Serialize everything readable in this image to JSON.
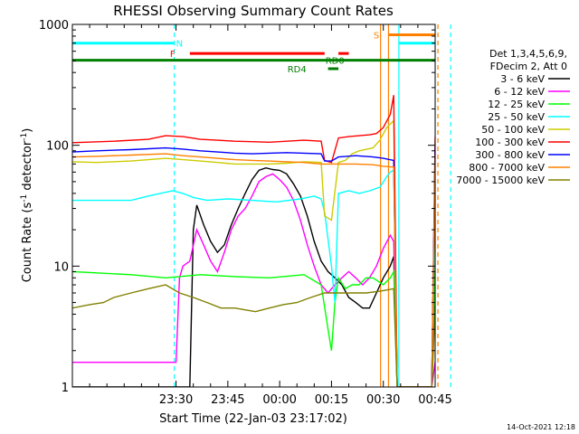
{
  "chart_data": {
    "type": "line",
    "title": "RHESSI Observing Summary Count Rates",
    "xlabel": "Start Time (22-Jan-03 23:17:02)",
    "ylabel_parts": [
      "Count Rate (s",
      "-1",
      " detector",
      "-1",
      ")"
    ],
    "yscale": "log",
    "ylim": [
      1,
      1000
    ],
    "xlim_min": [
      -17,
      88
    ],
    "x_ticks": [
      {
        "min": 13,
        "label": "23:30"
      },
      {
        "min": 28,
        "label": "23:45"
      },
      {
        "min": 43,
        "label": "00:00"
      },
      {
        "min": 58,
        "label": "00:15"
      },
      {
        "min": 73,
        "label": "00:30"
      },
      {
        "min": 88,
        "label": "00:45"
      }
    ],
    "y_ticks": [
      {
        "value": 1,
        "label": "1"
      },
      {
        "value": 10,
        "label": "10"
      },
      {
        "value": 100,
        "label": "100"
      },
      {
        "value": 1000,
        "label": "1000"
      }
    ],
    "legend_header": [
      "Det 1,3,4,5,6,9,",
      "FDecim 2, Att 0"
    ],
    "series": [
      {
        "name": "3 - 6 keV",
        "color": "#000000",
        "points": [
          [
            -17,
            1
          ],
          [
            17,
            1
          ],
          [
            18,
            20
          ],
          [
            19,
            32
          ],
          [
            21,
            22
          ],
          [
            23,
            16
          ],
          [
            25,
            13
          ],
          [
            27,
            15
          ],
          [
            29,
            22
          ],
          [
            31,
            30
          ],
          [
            33,
            40
          ],
          [
            35,
            52
          ],
          [
            37,
            62
          ],
          [
            39,
            65
          ],
          [
            41,
            63
          ],
          [
            43,
            62
          ],
          [
            45,
            58
          ],
          [
            47,
            48
          ],
          [
            49,
            38
          ],
          [
            51,
            26
          ],
          [
            53,
            16
          ],
          [
            55,
            11
          ],
          [
            57,
            9
          ],
          [
            59,
            8
          ],
          [
            61,
            7
          ],
          [
            63,
            5.5
          ],
          [
            65,
            5
          ],
          [
            67,
            4.5
          ],
          [
            69,
            4.5
          ],
          [
            71,
            6
          ],
          [
            73,
            8
          ],
          [
            75,
            10
          ],
          [
            76,
            12
          ],
          [
            77,
            1
          ],
          [
            87,
            1
          ],
          [
            88,
            9
          ],
          [
            90,
            8
          ],
          [
            92,
            7
          ]
        ]
      },
      {
        "name": "6 - 12 keV",
        "color": "#ff00ff",
        "points": [
          [
            -17,
            1.6
          ],
          [
            -5,
            1.6
          ],
          [
            12,
            1.6
          ],
          [
            13,
            1.6
          ],
          [
            14,
            8
          ],
          [
            15,
            10
          ],
          [
            17,
            11
          ],
          [
            19,
            20
          ],
          [
            21,
            15
          ],
          [
            23,
            11
          ],
          [
            25,
            9
          ],
          [
            27,
            13
          ],
          [
            29,
            20
          ],
          [
            31,
            26
          ],
          [
            33,
            30
          ],
          [
            35,
            38
          ],
          [
            37,
            50
          ],
          [
            39,
            55
          ],
          [
            41,
            58
          ],
          [
            43,
            52
          ],
          [
            45,
            45
          ],
          [
            47,
            35
          ],
          [
            49,
            24
          ],
          [
            51,
            15
          ],
          [
            53,
            10
          ],
          [
            55,
            7
          ],
          [
            57,
            6
          ],
          [
            59,
            7
          ],
          [
            61,
            8
          ],
          [
            63,
            9
          ],
          [
            65,
            8
          ],
          [
            67,
            7
          ],
          [
            69,
            8
          ],
          [
            71,
            10
          ],
          [
            73,
            14
          ],
          [
            75,
            18
          ],
          [
            76,
            16
          ],
          [
            77,
            1
          ],
          [
            87,
            1
          ],
          [
            88,
            1.6
          ],
          [
            90,
            1.6
          ],
          [
            92,
            1.6
          ]
        ]
      },
      {
        "name": "12 - 25 keV",
        "color": "#00ff00",
        "points": [
          [
            -17,
            9
          ],
          [
            0,
            8.5
          ],
          [
            10,
            8
          ],
          [
            20,
            8.5
          ],
          [
            30,
            8.2
          ],
          [
            40,
            8
          ],
          [
            50,
            8.5
          ],
          [
            55,
            7
          ],
          [
            57,
            3
          ],
          [
            58,
            2
          ],
          [
            59,
            5
          ],
          [
            60,
            8
          ],
          [
            62,
            6.5
          ],
          [
            64,
            7
          ],
          [
            66,
            7
          ],
          [
            68,
            8
          ],
          [
            70,
            8
          ],
          [
            73,
            7
          ],
          [
            75,
            8
          ],
          [
            76,
            9
          ],
          [
            77,
            1
          ],
          [
            87,
            1
          ],
          [
            88,
            10
          ],
          [
            90,
            9
          ],
          [
            92,
            8
          ]
        ]
      },
      {
        "name": "25 - 50 keV",
        "color": "#00ffff",
        "points": [
          [
            -17,
            35
          ],
          [
            -10,
            35
          ],
          [
            0,
            35
          ],
          [
            5,
            38
          ],
          [
            12,
            42
          ],
          [
            15,
            40
          ],
          [
            18,
            37
          ],
          [
            22,
            35
          ],
          [
            28,
            36
          ],
          [
            35,
            35
          ],
          [
            42,
            34
          ],
          [
            49,
            36
          ],
          [
            53,
            38
          ],
          [
            55,
            36
          ],
          [
            56,
            28
          ],
          [
            58,
            10
          ],
          [
            59,
            5
          ],
          [
            60,
            40
          ],
          [
            63,
            42
          ],
          [
            66,
            40
          ],
          [
            69,
            42
          ],
          [
            72,
            45
          ],
          [
            74,
            55
          ],
          [
            75,
            60
          ],
          [
            76,
            62
          ],
          [
            77,
            1
          ],
          [
            87,
            1
          ],
          [
            88,
            38
          ],
          [
            90,
            35
          ],
          [
            92,
            34
          ]
        ]
      },
      {
        "name": "50 - 100 keV",
        "color": "#cccc00",
        "points": [
          [
            -17,
            73
          ],
          [
            -10,
            72
          ],
          [
            0,
            74
          ],
          [
            10,
            78
          ],
          [
            15,
            76
          ],
          [
            20,
            74
          ],
          [
            25,
            72
          ],
          [
            30,
            70
          ],
          [
            35,
            70
          ],
          [
            40,
            70
          ],
          [
            45,
            71
          ],
          [
            50,
            73
          ],
          [
            55,
            72
          ],
          [
            56,
            26
          ],
          [
            58,
            24
          ],
          [
            60,
            72
          ],
          [
            62,
            75
          ],
          [
            64,
            85
          ],
          [
            66,
            90
          ],
          [
            70,
            95
          ],
          [
            72,
            110
          ],
          [
            74,
            140
          ],
          [
            76,
            160
          ],
          [
            77,
            1
          ],
          [
            87,
            1
          ],
          [
            88,
            78
          ],
          [
            90,
            72
          ],
          [
            92,
            70
          ]
        ]
      },
      {
        "name": "100 - 300 keV",
        "color": "#ff0000",
        "points": [
          [
            -17,
            105
          ],
          [
            -5,
            108
          ],
          [
            5,
            112
          ],
          [
            10,
            120
          ],
          [
            15,
            118
          ],
          [
            20,
            112
          ],
          [
            25,
            110
          ],
          [
            30,
            108
          ],
          [
            35,
            107
          ],
          [
            40,
            106
          ],
          [
            45,
            108
          ],
          [
            50,
            110
          ],
          [
            55,
            108
          ],
          [
            56,
            75
          ],
          [
            58,
            72
          ],
          [
            60,
            115
          ],
          [
            63,
            118
          ],
          [
            66,
            120
          ],
          [
            69,
            122
          ],
          [
            71,
            125
          ],
          [
            73,
            140
          ],
          [
            75,
            180
          ],
          [
            76,
            260
          ],
          [
            77,
            1
          ],
          [
            87,
            1
          ],
          [
            88,
            115
          ],
          [
            90,
            105
          ],
          [
            92,
            100
          ]
        ]
      },
      {
        "name": "300 - 800 keV",
        "color": "#0000ff",
        "points": [
          [
            -17,
            88
          ],
          [
            -10,
            90
          ],
          [
            0,
            92
          ],
          [
            10,
            95
          ],
          [
            15,
            93
          ],
          [
            20,
            90
          ],
          [
            25,
            88
          ],
          [
            30,
            86
          ],
          [
            35,
            85
          ],
          [
            40,
            86
          ],
          [
            45,
            87
          ],
          [
            50,
            86
          ],
          [
            55,
            85
          ],
          [
            56,
            74
          ],
          [
            58,
            74
          ],
          [
            60,
            80
          ],
          [
            65,
            82
          ],
          [
            70,
            80
          ],
          [
            73,
            78
          ],
          [
            76,
            75
          ],
          [
            77,
            1
          ],
          [
            87,
            1
          ],
          [
            88,
            95
          ],
          [
            90,
            90
          ],
          [
            92,
            88
          ]
        ]
      },
      {
        "name": "800 - 7000 keV",
        "color": "#ff8000",
        "points": [
          [
            -17,
            80
          ],
          [
            -10,
            81
          ],
          [
            0,
            83
          ],
          [
            10,
            85
          ],
          [
            15,
            82
          ],
          [
            20,
            80
          ],
          [
            25,
            78
          ],
          [
            30,
            76
          ],
          [
            35,
            75
          ],
          [
            40,
            74
          ],
          [
            45,
            73
          ],
          [
            50,
            72
          ],
          [
            55,
            70
          ],
          [
            60,
            70
          ],
          [
            65,
            70
          ],
          [
            70,
            69
          ],
          [
            73,
            67
          ],
          [
            76,
            66
          ],
          [
            77,
            1
          ],
          [
            87,
            1
          ],
          [
            88,
            82
          ],
          [
            90,
            80
          ],
          [
            92,
            78
          ]
        ]
      },
      {
        "name": "7000 - 15000 keV",
        "color": "#808000",
        "points": [
          [
            -17,
            4.5
          ],
          [
            -12,
            4.8
          ],
          [
            -8,
            5
          ],
          [
            -5,
            5.5
          ],
          [
            0,
            6
          ],
          [
            5,
            6.5
          ],
          [
            10,
            7
          ],
          [
            14,
            6
          ],
          [
            18,
            5.5
          ],
          [
            22,
            5
          ],
          [
            26,
            4.5
          ],
          [
            30,
            4.5
          ],
          [
            36,
            4.2
          ],
          [
            40,
            4.5
          ],
          [
            44,
            4.8
          ],
          [
            48,
            5
          ],
          [
            52,
            5.5
          ],
          [
            56,
            6
          ],
          [
            60,
            6
          ],
          [
            64,
            6
          ],
          [
            68,
            6
          ],
          [
            72,
            6.2
          ],
          [
            76,
            6.5
          ],
          [
            77,
            1
          ],
          [
            87,
            1
          ],
          [
            88,
            4.5
          ],
          [
            90,
            4
          ],
          [
            92,
            3.8
          ]
        ]
      }
    ],
    "vlines": [
      {
        "min": 12.5,
        "color": "#00ffff",
        "style": "dashed"
      },
      {
        "min": 72.2,
        "color": "#ff8000",
        "style": "solid"
      },
      {
        "min": 74.5,
        "color": "#ff8000",
        "style": "solid"
      },
      {
        "min": 77.5,
        "color": "#00ffff",
        "style": "solid"
      },
      {
        "min": 88.8,
        "color": "#ff8000",
        "style": "dashed"
      },
      {
        "min": 92.5,
        "color": "#00ffff",
        "style": "dashed"
      }
    ],
    "flag_bars": [
      {
        "label": "N",
        "color": "#00ffff",
        "value": 700,
        "segments": [
          [
            -17,
            12.5
          ],
          [
            77.5,
            92.5
          ]
        ],
        "label_at": 14
      },
      {
        "label": "F",
        "color": "#ff0000",
        "value": 575,
        "segments": [
          [
            17,
            56
          ]
        ],
        "label_at": 12
      },
      {
        "label": "",
        "color": "#ff0000",
        "value": 575,
        "segments": [
          [
            60,
            63
          ]
        ],
        "label_at": 0
      },
      {
        "label": "RD0",
        "color": "#008000",
        "value": 505,
        "segments": [
          [
            -17,
            92.5
          ]
        ],
        "label_at": 59
      },
      {
        "label": "RD4",
        "color": "#008000",
        "value": 430,
        "segments": [
          [
            57,
            60
          ]
        ],
        "label_at": 48
      },
      {
        "label": "S",
        "color": "#ff8000",
        "value": 820,
        "segments": [
          [
            74.5,
            88.8
          ]
        ],
        "label_at": 71
      }
    ],
    "timestamp": "14-Oct-2021 12:18"
  }
}
